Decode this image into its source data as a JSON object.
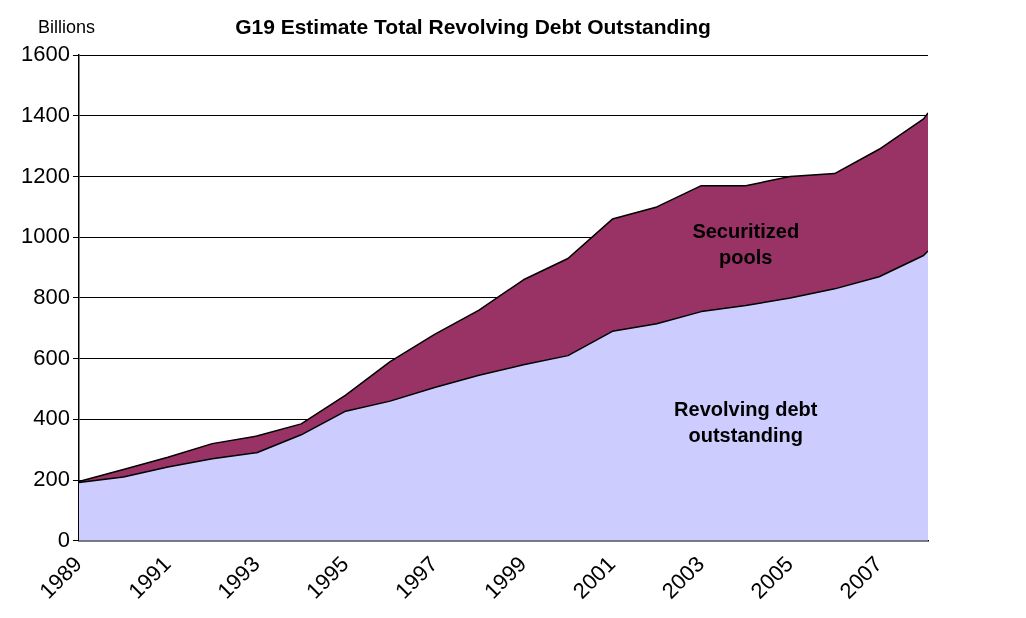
{
  "chart_data": {
    "type": "area",
    "title": "G19 Estimate Total Revolving Debt Outstanding",
    "ylabel": "Billions",
    "stacked": true,
    "legend": false,
    "grid": "y",
    "x": [
      1989,
      1990,
      1991,
      1992,
      1993,
      1994,
      1995,
      1996,
      1997,
      1998,
      1999,
      2000,
      2001,
      2002,
      2003,
      2004,
      2005,
      2006,
      2007,
      2008,
      2008.1
    ],
    "xlim": [
      1989,
      2008.1
    ],
    "xticks": [
      1989,
      1991,
      1993,
      1995,
      1997,
      1999,
      2001,
      2003,
      2005,
      2007
    ],
    "ylim": [
      0,
      1600
    ],
    "yticks": [
      0,
      200,
      400,
      600,
      800,
      1000,
      1200,
      1400,
      1600
    ],
    "series": [
      {
        "name": "Revolving debt outstanding",
        "color": "#ccccff",
        "values": [
          192,
          210,
          243,
          270,
          290,
          349,
          427,
          460,
          505,
          545,
          580,
          610,
          690,
          715,
          755,
          775,
          800,
          830,
          870,
          940,
          955
        ]
      },
      {
        "name": "Securitized pools",
        "color": "#993366",
        "values": [
          3,
          25,
          32,
          50,
          55,
          36,
          53,
          130,
          175,
          215,
          280,
          320,
          370,
          385,
          415,
          395,
          400,
          380,
          420,
          450,
          455
        ]
      }
    ]
  }
}
